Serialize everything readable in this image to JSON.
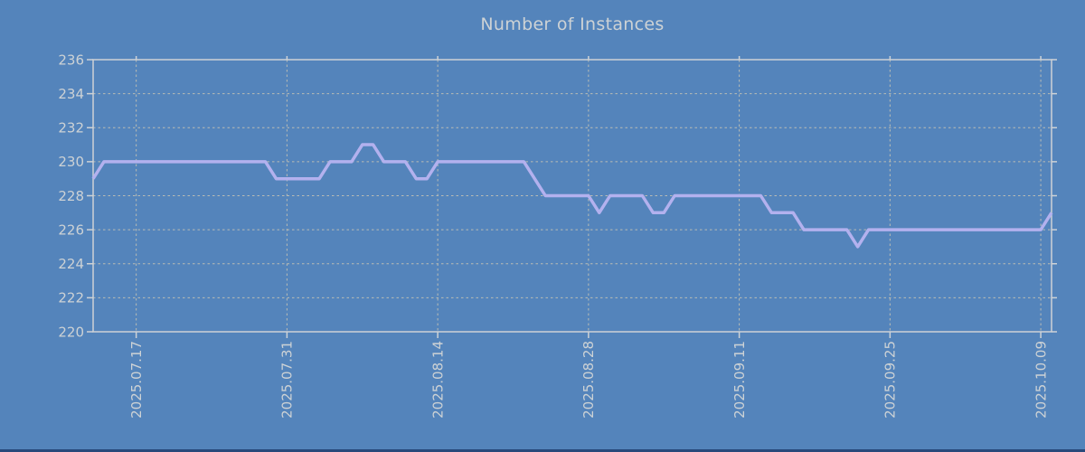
{
  "chart_data": {
    "type": "line",
    "title": "Number of Instances",
    "ylim": [
      220,
      236
    ],
    "yticks": [
      220,
      222,
      224,
      226,
      228,
      230,
      232,
      234,
      236
    ],
    "xtick_labels": [
      "2025.07.17",
      "2025.07.31",
      "2025.08.14",
      "2025.08.28",
      "2025.09.11",
      "2025.09.25",
      "2025.10.09"
    ],
    "grid": true,
    "legend_visible": false,
    "dates": [
      "2025.07.13",
      "2025.07.14",
      "2025.07.15",
      "2025.07.16",
      "2025.07.17",
      "2025.07.18",
      "2025.07.19",
      "2025.07.20",
      "2025.07.21",
      "2025.07.22",
      "2025.07.23",
      "2025.07.24",
      "2025.07.25",
      "2025.07.26",
      "2025.07.27",
      "2025.07.28",
      "2025.07.29",
      "2025.07.30",
      "2025.07.31",
      "2025.08.01",
      "2025.08.02",
      "2025.08.03",
      "2025.08.04",
      "2025.08.05",
      "2025.08.06",
      "2025.08.07",
      "2025.08.08",
      "2025.08.09",
      "2025.08.10",
      "2025.08.11",
      "2025.08.12",
      "2025.08.13",
      "2025.08.14",
      "2025.08.15",
      "2025.08.16",
      "2025.08.17",
      "2025.08.18",
      "2025.08.19",
      "2025.08.20",
      "2025.08.21",
      "2025.08.22",
      "2025.08.23",
      "2025.08.24",
      "2025.08.25",
      "2025.08.26",
      "2025.08.27",
      "2025.08.28",
      "2025.08.29",
      "2025.08.30",
      "2025.08.31",
      "2025.09.01",
      "2025.09.02",
      "2025.09.03",
      "2025.09.04",
      "2025.09.05",
      "2025.09.06",
      "2025.09.07",
      "2025.09.08",
      "2025.09.09",
      "2025.09.10",
      "2025.09.11",
      "2025.09.12",
      "2025.09.13",
      "2025.09.14",
      "2025.09.15",
      "2025.09.16",
      "2025.09.17",
      "2025.09.18",
      "2025.09.19",
      "2025.09.20",
      "2025.09.21",
      "2025.09.22",
      "2025.09.23",
      "2025.09.24",
      "2025.09.25",
      "2025.09.26",
      "2025.09.27",
      "2025.09.28",
      "2025.09.29",
      "2025.09.30",
      "2025.10.01",
      "2025.10.02",
      "2025.10.03",
      "2025.10.04",
      "2025.10.05",
      "2025.10.06",
      "2025.10.07",
      "2025.10.08",
      "2025.10.09",
      "2025.10.10"
    ],
    "values": [
      229,
      230,
      230,
      230,
      230,
      230,
      230,
      230,
      230,
      230,
      230,
      230,
      230,
      230,
      230,
      230,
      230,
      229,
      229,
      229,
      229,
      229,
      230,
      230,
      230,
      231,
      231,
      230,
      230,
      230,
      229,
      229,
      230,
      230,
      230,
      230,
      230,
      230,
      230,
      230,
      230,
      229,
      228,
      228,
      228,
      228,
      228,
      227,
      228,
      228,
      228,
      228,
      227,
      227,
      228,
      228,
      228,
      228,
      228,
      228,
      228,
      228,
      228,
      227,
      227,
      227,
      226,
      226,
      226,
      226,
      226,
      225,
      226,
      226,
      226,
      226,
      226,
      226,
      226,
      226,
      226,
      226,
      226,
      226,
      226,
      226,
      226,
      226,
      226,
      227
    ]
  },
  "colors": {
    "background": "#5484bb",
    "line": "#b3b1ee",
    "grid": "#b9bcb5",
    "frame": "#ced2d6",
    "text": "#cdd2d5",
    "bottom_bar": "#28497b"
  }
}
